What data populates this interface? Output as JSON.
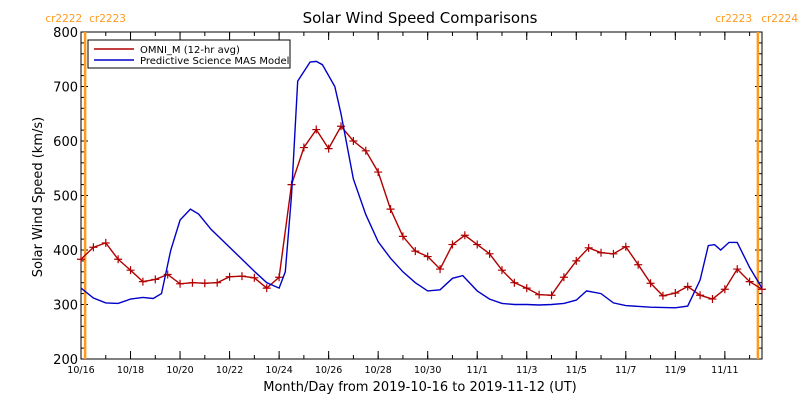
{
  "chart_data": {
    "type": "line",
    "title": "Solar Wind Speed Comparisons",
    "xlabel": "Month/Day from 2019-10-16 to 2019-11-12 (UT)",
    "ylabel": "Solar Wind Speed (km/s)",
    "ylim": [
      200,
      800
    ],
    "xlim": [
      "2019-10-16T00:00",
      "2019-11-12T12:00"
    ],
    "yticks": [
      200,
      300,
      400,
      500,
      600,
      700,
      800
    ],
    "xticks": [
      {
        "date": "2019-10-16",
        "label": "10/16"
      },
      {
        "date": "2019-10-18",
        "label": "10/18"
      },
      {
        "date": "2019-10-20",
        "label": "10/20"
      },
      {
        "date": "2019-10-22",
        "label": "10/22"
      },
      {
        "date": "2019-10-24",
        "label": "10/24"
      },
      {
        "date": "2019-10-26",
        "label": "10/26"
      },
      {
        "date": "2019-10-28",
        "label": "10/28"
      },
      {
        "date": "2019-10-30",
        "label": "10/30"
      },
      {
        "date": "2019-11-01",
        "label": "11/1"
      },
      {
        "date": "2019-11-03",
        "label": "11/3"
      },
      {
        "date": "2019-11-05",
        "label": "11/5"
      },
      {
        "date": "2019-11-07",
        "label": "11/7"
      },
      {
        "date": "2019-11-09",
        "label": "11/9"
      },
      {
        "date": "2019-11-11",
        "label": "11/11"
      }
    ],
    "carrington_markers": [
      {
        "date": "2019-10-16T04:00",
        "left_label": "cr2222",
        "right_label": "cr2223"
      },
      {
        "date": "2019-11-12T08:00",
        "left_label": "cr2223",
        "right_label": "cr2224"
      }
    ],
    "legend_position": "top-left",
    "series": [
      {
        "name": "OMNI_M (12-hr avg)",
        "color": "#b00000",
        "marker": "plus",
        "points": [
          [
            "2019-10-16T00:00",
            383
          ],
          [
            "2019-10-16T12:00",
            405
          ],
          [
            "2019-10-17T00:00",
            413
          ],
          [
            "2019-10-17T12:00",
            383
          ],
          [
            "2019-10-18T00:00",
            363
          ],
          [
            "2019-10-18T12:00",
            342
          ],
          [
            "2019-10-19T00:00",
            346
          ],
          [
            "2019-10-19T12:00",
            355
          ],
          [
            "2019-10-20T00:00",
            338
          ],
          [
            "2019-10-20T12:00",
            340
          ],
          [
            "2019-10-21T00:00",
            339
          ],
          [
            "2019-10-21T12:00",
            340
          ],
          [
            "2019-10-22T00:00",
            351
          ],
          [
            "2019-10-22T12:00",
            352
          ],
          [
            "2019-10-23T00:00",
            349
          ],
          [
            "2019-10-23T12:00",
            330
          ],
          [
            "2019-10-24T00:00",
            350
          ],
          [
            "2019-10-24T12:00",
            520
          ],
          [
            "2019-10-25T00:00",
            588
          ],
          [
            "2019-10-25T12:00",
            621
          ],
          [
            "2019-10-26T00:00",
            586
          ],
          [
            "2019-10-26T12:00",
            627
          ],
          [
            "2019-10-27T00:00",
            600
          ],
          [
            "2019-10-27T12:00",
            582
          ],
          [
            "2019-10-28T00:00",
            543
          ],
          [
            "2019-10-28T12:00",
            475
          ],
          [
            "2019-10-29T00:00",
            425
          ],
          [
            "2019-10-29T12:00",
            398
          ],
          [
            "2019-10-30T00:00",
            388
          ],
          [
            "2019-10-30T12:00",
            365
          ],
          [
            "2019-10-31T00:00",
            410
          ],
          [
            "2019-10-31T12:00",
            427
          ],
          [
            "2019-11-01T00:00",
            410
          ],
          [
            "2019-11-01T12:00",
            393
          ],
          [
            "2019-11-02T00:00",
            363
          ],
          [
            "2019-11-02T12:00",
            340
          ],
          [
            "2019-11-03T00:00",
            330
          ],
          [
            "2019-11-03T12:00",
            318
          ],
          [
            "2019-11-04T00:00",
            317
          ],
          [
            "2019-11-04T12:00",
            350
          ],
          [
            "2019-11-05T00:00",
            380
          ],
          [
            "2019-11-05T12:00",
            404
          ],
          [
            "2019-11-06T00:00",
            395
          ],
          [
            "2019-11-06T12:00",
            393
          ],
          [
            "2019-11-07T00:00",
            406
          ],
          [
            "2019-11-07T12:00",
            373
          ],
          [
            "2019-11-08T00:00",
            339
          ],
          [
            "2019-11-08T12:00",
            316
          ],
          [
            "2019-11-09T00:00",
            321
          ],
          [
            "2019-11-09T12:00",
            333
          ],
          [
            "2019-11-10T00:00",
            317
          ],
          [
            "2019-11-10T12:00",
            310
          ],
          [
            "2019-11-11T00:00",
            328
          ],
          [
            "2019-11-11T12:00",
            365
          ],
          [
            "2019-11-12T00:00",
            342
          ],
          [
            "2019-11-12T12:00",
            328
          ]
        ]
      },
      {
        "name": "Predictive Science MAS Model",
        "color": "#0000c8",
        "marker": "none",
        "points": [
          [
            "2019-10-16T00:00",
            330
          ],
          [
            "2019-10-16T12:00",
            312
          ],
          [
            "2019-10-17T00:00",
            303
          ],
          [
            "2019-10-17T12:00",
            302
          ],
          [
            "2019-10-18T00:00",
            310
          ],
          [
            "2019-10-18T12:00",
            313
          ],
          [
            "2019-10-18T22:00",
            311
          ],
          [
            "2019-10-19T06:00",
            320
          ],
          [
            "2019-10-19T15:00",
            400
          ],
          [
            "2019-10-20T00:00",
            455
          ],
          [
            "2019-10-20T10:00",
            475
          ],
          [
            "2019-10-20T18:00",
            466
          ],
          [
            "2019-10-21T06:00",
            438
          ],
          [
            "2019-10-22T00:00",
            405
          ],
          [
            "2019-10-22T12:00",
            383
          ],
          [
            "2019-10-23T00:00",
            361
          ],
          [
            "2019-10-23T12:00",
            340
          ],
          [
            "2019-10-24T00:00",
            330
          ],
          [
            "2019-10-24T06:00",
            360
          ],
          [
            "2019-10-24T12:00",
            500
          ],
          [
            "2019-10-24T18:00",
            710
          ],
          [
            "2019-10-25T06:00",
            745
          ],
          [
            "2019-10-25T12:00",
            746
          ],
          [
            "2019-10-25T18:00",
            740
          ],
          [
            "2019-10-26T06:00",
            700
          ],
          [
            "2019-10-26T12:00",
            650
          ],
          [
            "2019-10-27T00:00",
            530
          ],
          [
            "2019-10-27T12:00",
            465
          ],
          [
            "2019-10-28T00:00",
            415
          ],
          [
            "2019-10-28T12:00",
            385
          ],
          [
            "2019-10-29T00:00",
            360
          ],
          [
            "2019-10-29T12:00",
            340
          ],
          [
            "2019-10-30T00:00",
            325
          ],
          [
            "2019-10-30T12:00",
            327
          ],
          [
            "2019-10-31T00:00",
            348
          ],
          [
            "2019-10-31T10:00",
            353
          ],
          [
            "2019-11-01T00:00",
            325
          ],
          [
            "2019-11-01T12:00",
            310
          ],
          [
            "2019-11-02T00:00",
            302
          ],
          [
            "2019-11-02T12:00",
            300
          ],
          [
            "2019-11-03T00:00",
            300
          ],
          [
            "2019-11-03T12:00",
            299
          ],
          [
            "2019-11-04T00:00",
            300
          ],
          [
            "2019-11-04T12:00",
            302
          ],
          [
            "2019-11-05T00:00",
            308
          ],
          [
            "2019-11-05T10:00",
            325
          ],
          [
            "2019-11-06T00:00",
            320
          ],
          [
            "2019-11-06T12:00",
            303
          ],
          [
            "2019-11-07T00:00",
            298
          ],
          [
            "2019-11-08T00:00",
            295
          ],
          [
            "2019-11-09T00:00",
            294
          ],
          [
            "2019-11-09T12:00",
            297
          ],
          [
            "2019-11-10T00:00",
            345
          ],
          [
            "2019-11-10T08:00",
            408
          ],
          [
            "2019-11-10T14:00",
            410
          ],
          [
            "2019-11-10T20:00",
            400
          ],
          [
            "2019-11-11T04:00",
            414
          ],
          [
            "2019-11-11T12:00",
            414
          ],
          [
            "2019-11-12T00:00",
            368
          ],
          [
            "2019-11-12T12:00",
            330
          ]
        ]
      }
    ]
  }
}
